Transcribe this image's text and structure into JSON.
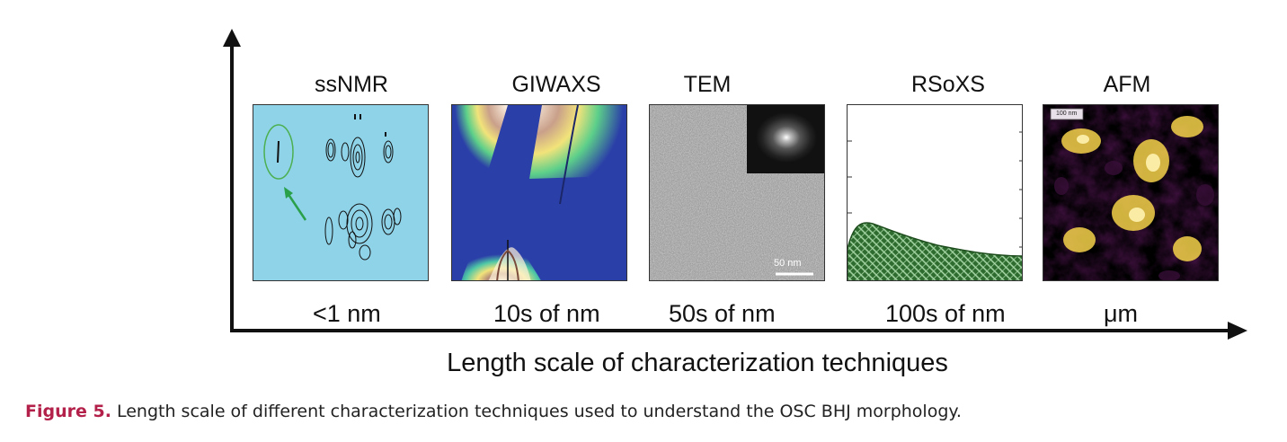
{
  "techniques": [
    {
      "name": "ssNMR",
      "scale": "<1 nm"
    },
    {
      "name": "GIWAXS",
      "scale": "10s of nm"
    },
    {
      "name": "TEM",
      "scale": "50s of nm"
    },
    {
      "name": "RSoXS",
      "scale": "100s of nm"
    },
    {
      "name": "AFM",
      "scale": "μm"
    }
  ],
  "tem_scalebar": "50 nm",
  "afm_scalebar": "100 nm",
  "axis_title": "Length scale of characterization techniques",
  "caption": {
    "label": "Figure 5.",
    "text": "Length scale of different characterization techniques used to understand the OSC BHJ morphology."
  },
  "colors": {
    "nmr_bg": "#8fd3e8",
    "giwaxs_bg": "#2b3fa8",
    "rsoxs_fill": "#2e6b2e",
    "afm_dark": "#3a0f3a",
    "afm_light": "#f4d24a",
    "caption_label": "#b3204a"
  }
}
